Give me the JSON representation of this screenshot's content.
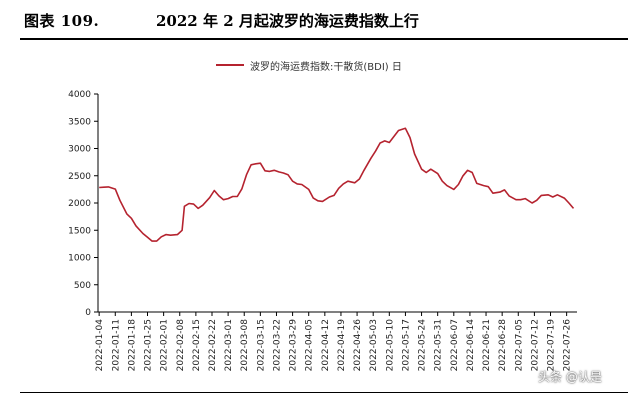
{
  "figure": {
    "number": "图表 109.",
    "title": "2022 年 2 月起波罗的海运费指数上行"
  },
  "watermark": "头条 @认是",
  "chart_data": {
    "type": "line",
    "legend_position": "top-center",
    "grid": false,
    "ylim": [
      0,
      4000
    ],
    "yticks": [
      0,
      500,
      1000,
      1500,
      2000,
      2500,
      3000,
      3500,
      4000
    ],
    "x_tick_labels": [
      "2022-01-04",
      "2022-01-11",
      "2022-01-18",
      "2022-01-25",
      "2022-02-01",
      "2022-02-08",
      "2022-02-15",
      "2022-02-22",
      "2022-03-01",
      "2022-03-08",
      "2022-03-15",
      "2022-03-22",
      "2022-03-29",
      "2022-04-05",
      "2022-04-12",
      "2022-04-19",
      "2022-04-26",
      "2022-05-03",
      "2022-05-10",
      "2022-05-17",
      "2022-05-24",
      "2022-05-31",
      "2022-06-07",
      "2022-06-14",
      "2022-06-21",
      "2022-06-28",
      "2022-07-05",
      "2022-07-12",
      "2022-07-19",
      "2022-07-26"
    ],
    "series": [
      {
        "name": "波罗的海运费指数:干散货(BDI) 日",
        "color": "#B5232F",
        "points": [
          [
            "2022-01-04",
            2285
          ],
          [
            "2022-01-06",
            2290
          ],
          [
            "2022-01-08",
            2295
          ],
          [
            "2022-01-11",
            2255
          ],
          [
            "2022-01-13",
            2050
          ],
          [
            "2022-01-16",
            1800
          ],
          [
            "2022-01-18",
            1720
          ],
          [
            "2022-01-20",
            1580
          ],
          [
            "2022-01-23",
            1440
          ],
          [
            "2022-01-25",
            1370
          ],
          [
            "2022-01-27",
            1300
          ],
          [
            "2022-01-29",
            1300
          ],
          [
            "2022-01-31",
            1380
          ],
          [
            "2022-02-02",
            1420
          ],
          [
            "2022-02-04",
            1410
          ],
          [
            "2022-02-07",
            1420
          ],
          [
            "2022-02-09",
            1500
          ],
          [
            "2022-02-10",
            1940
          ],
          [
            "2022-02-12",
            1990
          ],
          [
            "2022-02-14",
            1980
          ],
          [
            "2022-02-16",
            1900
          ],
          [
            "2022-02-18",
            1960
          ],
          [
            "2022-02-21",
            2100
          ],
          [
            "2022-02-23",
            2230
          ],
          [
            "2022-02-25",
            2130
          ],
          [
            "2022-02-27",
            2060
          ],
          [
            "2022-03-01",
            2080
          ],
          [
            "2022-03-03",
            2120
          ],
          [
            "2022-03-05",
            2120
          ],
          [
            "2022-03-07",
            2260
          ],
          [
            "2022-03-09",
            2520
          ],
          [
            "2022-03-11",
            2700
          ],
          [
            "2022-03-13",
            2720
          ],
          [
            "2022-03-15",
            2730
          ],
          [
            "2022-03-17",
            2590
          ],
          [
            "2022-03-19",
            2580
          ],
          [
            "2022-03-21",
            2600
          ],
          [
            "2022-03-23",
            2570
          ],
          [
            "2022-03-25",
            2550
          ],
          [
            "2022-03-27",
            2520
          ],
          [
            "2022-03-29",
            2400
          ],
          [
            "2022-03-31",
            2350
          ],
          [
            "2022-04-02",
            2340
          ],
          [
            "2022-04-05",
            2250
          ],
          [
            "2022-04-07",
            2090
          ],
          [
            "2022-04-09",
            2040
          ],
          [
            "2022-04-11",
            2030
          ],
          [
            "2022-04-14",
            2110
          ],
          [
            "2022-04-16",
            2140
          ],
          [
            "2022-04-18",
            2270
          ],
          [
            "2022-04-20",
            2350
          ],
          [
            "2022-04-22",
            2400
          ],
          [
            "2022-04-25",
            2370
          ],
          [
            "2022-04-27",
            2440
          ],
          [
            "2022-04-29",
            2600
          ],
          [
            "2022-05-02",
            2820
          ],
          [
            "2022-05-04",
            2950
          ],
          [
            "2022-05-06",
            3100
          ],
          [
            "2022-05-08",
            3140
          ],
          [
            "2022-05-10",
            3110
          ],
          [
            "2022-05-12",
            3220
          ],
          [
            "2022-05-14",
            3330
          ],
          [
            "2022-05-17",
            3370
          ],
          [
            "2022-05-19",
            3200
          ],
          [
            "2022-05-21",
            2900
          ],
          [
            "2022-05-24",
            2620
          ],
          [
            "2022-05-26",
            2560
          ],
          [
            "2022-05-28",
            2620
          ],
          [
            "2022-05-31",
            2540
          ],
          [
            "2022-06-02",
            2400
          ],
          [
            "2022-06-04",
            2320
          ],
          [
            "2022-06-07",
            2250
          ],
          [
            "2022-06-09",
            2340
          ],
          [
            "2022-06-11",
            2500
          ],
          [
            "2022-06-13",
            2600
          ],
          [
            "2022-06-15",
            2560
          ],
          [
            "2022-06-17",
            2360
          ],
          [
            "2022-06-20",
            2320
          ],
          [
            "2022-06-22",
            2300
          ],
          [
            "2022-06-24",
            2180
          ],
          [
            "2022-06-27",
            2200
          ],
          [
            "2022-06-29",
            2240
          ],
          [
            "2022-07-01",
            2130
          ],
          [
            "2022-07-04",
            2060
          ],
          [
            "2022-07-06",
            2060
          ],
          [
            "2022-07-08",
            2080
          ],
          [
            "2022-07-11",
            2000
          ],
          [
            "2022-07-13",
            2050
          ],
          [
            "2022-07-15",
            2140
          ],
          [
            "2022-07-18",
            2150
          ],
          [
            "2022-07-20",
            2110
          ],
          [
            "2022-07-22",
            2150
          ],
          [
            "2022-07-25",
            2090
          ],
          [
            "2022-07-27",
            2000
          ],
          [
            "2022-07-29",
            1900
          ]
        ]
      }
    ]
  }
}
